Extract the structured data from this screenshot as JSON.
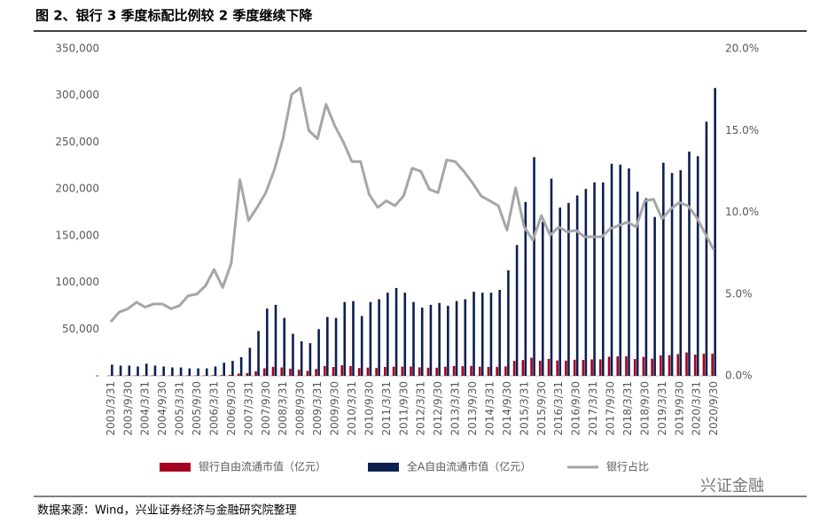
{
  "chart_data": {
    "type": "bar_line",
    "title": "图 2、银行 3 季度标配比例较 2 季度继续下降",
    "source": "数据来源：Wind，兴业证券经济与金融研究院整理",
    "watermark": "兴证金融",
    "categories": [
      "2003/3/31",
      null,
      "2003/9/30",
      null,
      "2004/3/31",
      null,
      "2004/9/30",
      null,
      "2005/3/31",
      null,
      "2005/9/30",
      null,
      "2006/3/31",
      null,
      "2006/9/30",
      null,
      "2007/3/31",
      null,
      "2007/9/30",
      null,
      "2008/3/31",
      null,
      "2008/9/30",
      null,
      "2009/3/31",
      null,
      "2009/9/30",
      null,
      "2010/3/31",
      null,
      "2010/9/30",
      null,
      "2011/3/31",
      null,
      "2011/9/30",
      null,
      "2012/3/31",
      null,
      "2012/9/30",
      null,
      "2013/3/31",
      null,
      "2013/9/30",
      null,
      "2014/3/31",
      null,
      "2014/9/30",
      null,
      "2015/3/31",
      null,
      "2015/9/30",
      null,
      "2016/3/31",
      null,
      "2016/9/30",
      null,
      "2017/3/31",
      null,
      "2017/9/30",
      null,
      "2018/3/31",
      null,
      "2018/9/30",
      null,
      "2019/3/31",
      null,
      "2019/9/30",
      null,
      "2020/3/31",
      null,
      "2020/9/30"
    ],
    "series": [
      {
        "name": "银行自由流通市值（亿元）",
        "color": "#a50021",
        "kind": "bar",
        "axis": "y",
        "values": [
          400,
          430,
          450,
          450,
          550,
          480,
          440,
          370,
          390,
          390,
          400,
          440,
          650,
          760,
          1100,
          2400,
          2850,
          4900,
          8100,
          9600,
          9000,
          7700,
          6500,
          5300,
          7300,
          10500,
          9500,
          11300,
          10500,
          8400,
          8800,
          8400,
          9500,
          9800,
          9800,
          10000,
          9100,
          8700,
          8700,
          9900,
          10500,
          10300,
          10600,
          9800,
          9500,
          9600,
          10100,
          16100,
          16900,
          19400,
          16200,
          18100,
          16400,
          16300,
          17200,
          17000,
          17600,
          17600,
          20400,
          20800,
          20900,
          17900,
          20300,
          18400,
          21900,
          22100,
          23300,
          25000,
          22800,
          23700,
          23700
        ]
      },
      {
        "name": "全A自由流通市值（亿元）",
        "color": "#0c2050",
        "kind": "bar",
        "axis": "y",
        "values": [
          12000,
          11000,
          11000,
          10000,
          13000,
          11000,
          10000,
          9000,
          9000,
          8000,
          8000,
          8000,
          10000,
          14000,
          16000,
          20000,
          30000,
          48000,
          72000,
          76000,
          62000,
          45000,
          37000,
          35000,
          50000,
          63000,
          62000,
          79000,
          80000,
          64000,
          79000,
          82000,
          89000,
          94000,
          89000,
          79000,
          73000,
          76000,
          78000,
          75000,
          80000,
          82000,
          90000,
          89000,
          89000,
          92000,
          113000,
          140000,
          186000,
          234000,
          165000,
          211000,
          180000,
          185000,
          193000,
          200000,
          207000,
          207000,
          227000,
          226000,
          222000,
          197000,
          190000,
          170000,
          228000,
          217000,
          220000,
          240000,
          235000,
          272000,
          308000
        ]
      },
      {
        "name": "银行占比",
        "color": "#a6a6a6",
        "kind": "line",
        "axis": "y2",
        "values": [
          3.3,
          3.9,
          4.1,
          4.5,
          4.2,
          4.4,
          4.4,
          4.1,
          4.3,
          4.9,
          5.0,
          5.5,
          6.5,
          5.4,
          6.9,
          12.0,
          9.5,
          10.3,
          11.2,
          12.6,
          14.5,
          17.2,
          17.6,
          15.0,
          14.5,
          16.6,
          15.3,
          14.3,
          13.1,
          13.1,
          11.1,
          10.3,
          10.7,
          10.4,
          11.0,
          12.7,
          12.5,
          11.4,
          11.2,
          13.2,
          13.1,
          12.5,
          11.8,
          11.0,
          10.7,
          10.4,
          8.9,
          11.5,
          9.1,
          8.3,
          9.8,
          8.6,
          9.1,
          8.8,
          8.9,
          8.5,
          8.5,
          8.5,
          9.0,
          9.2,
          9.4,
          9.1,
          10.7,
          10.8,
          9.6,
          10.2,
          10.6,
          10.4,
          9.7,
          8.7,
          7.7
        ]
      }
    ],
    "ylim": [
      0,
      350000
    ],
    "yticks": [
      {
        "value": 0,
        "label": "-"
      },
      {
        "value": 50000,
        "label": "50,000"
      },
      {
        "value": 100000,
        "label": "100,000"
      },
      {
        "value": 150000,
        "label": "150,000"
      },
      {
        "value": 200000,
        "label": "200,000"
      },
      {
        "value": 250000,
        "label": "250,000"
      },
      {
        "value": 300000,
        "label": "300,000"
      },
      {
        "value": 350000,
        "label": "350,000"
      }
    ],
    "y2lim": [
      0,
      20
    ],
    "y2ticks": [
      {
        "value": 0,
        "label": "0.0%"
      },
      {
        "value": 5,
        "label": "5.0%"
      },
      {
        "value": 10,
        "label": "10.0%"
      },
      {
        "value": 15,
        "label": "15.0%"
      },
      {
        "value": 20,
        "label": "20.0%"
      }
    ]
  }
}
